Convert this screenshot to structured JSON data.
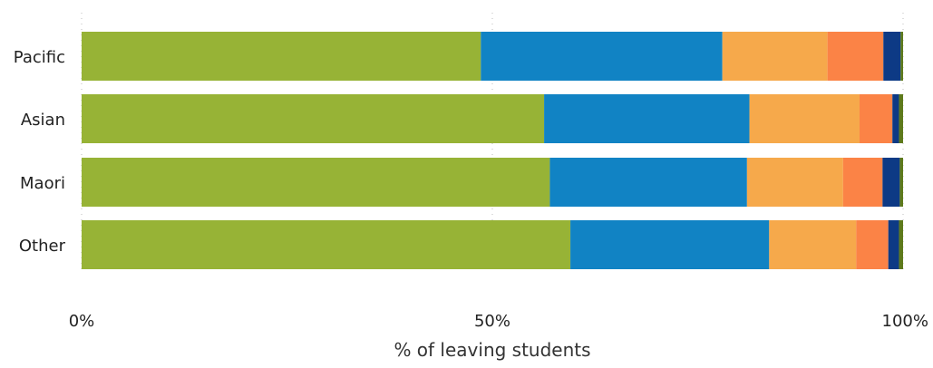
{
  "chart_data": {
    "type": "bar",
    "orientation": "horizontal",
    "stacked": true,
    "normalized_percent": true,
    "categories": [
      "Pacific",
      "Asian",
      "Maori",
      "Other"
    ],
    "series": [
      {
        "values": [
          48.6,
          56.3,
          57.0,
          59.5
        ],
        "color": "#97b336"
      },
      {
        "values": [
          29.4,
          25.0,
          24.0,
          24.2
        ],
        "color": "#1183c4"
      },
      {
        "values": [
          12.8,
          13.4,
          11.7,
          10.6
        ],
        "color": "#f6a94b"
      },
      {
        "values": [
          6.8,
          4.0,
          4.8,
          3.9
        ],
        "color": "#fb8346"
      },
      {
        "values": [
          2.1,
          0.8,
          2.1,
          1.3
        ],
        "color": "#0d3a85"
      },
      {
        "values": [
          0.3,
          0.5,
          0.4,
          0.5
        ],
        "color": "#5e7a1c"
      }
    ],
    "xlim": [
      0,
      100
    ],
    "x_ticks": [
      "0%",
      "50%",
      "100%"
    ],
    "xlabel": "% of leaving students",
    "ylabel": "",
    "title": "",
    "grid": "vertical-dotted",
    "legend": "none"
  }
}
